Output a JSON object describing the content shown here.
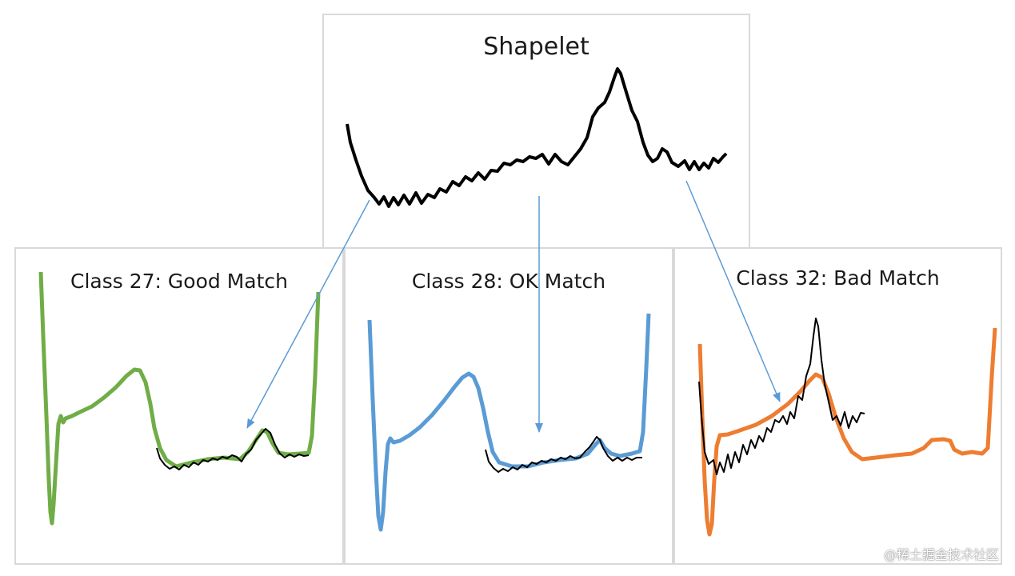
{
  "shapelet": {
    "title": "Shapelet"
  },
  "panels": [
    {
      "id": "c27",
      "title": "Class 27: Good Match",
      "color": "#70ad47"
    },
    {
      "id": "c28",
      "title": "Class 28: OK Match",
      "color": "#5b9bd5"
    },
    {
      "id": "c32",
      "title": "Class 32: Bad Match",
      "color": "#ed7d31"
    }
  ],
  "colors": {
    "shapelet": "#000000",
    "arrow": "#5b9bd5",
    "border": "#d9d9d9"
  },
  "watermark": "@稀土掘金技术社区"
}
